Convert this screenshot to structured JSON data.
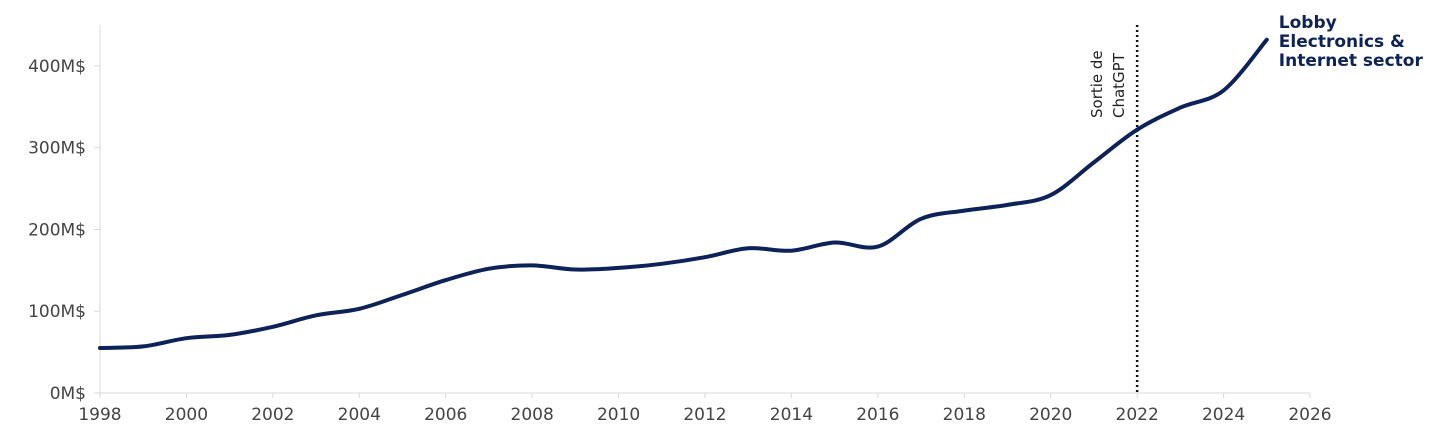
{
  "colors": {
    "series": "#0d2259",
    "axis": "#d9d9d9",
    "marker": "#111111",
    "text": "#444444"
  },
  "chart_data": {
    "type": "line",
    "title": "",
    "xlabel": "",
    "ylabel": "",
    "xlim": [
      1998,
      2026
    ],
    "ylim": [
      0,
      450
    ],
    "x_ticks": [
      1998,
      2000,
      2002,
      2004,
      2006,
      2008,
      2010,
      2012,
      2014,
      2016,
      2018,
      2020,
      2022,
      2024,
      2026
    ],
    "y_ticks": [
      {
        "value": 0,
        "label": "0M$"
      },
      {
        "value": 100,
        "label": "100M$"
      },
      {
        "value": 200,
        "label": "200M$"
      },
      {
        "value": 300,
        "label": "300M$"
      },
      {
        "value": 400,
        "label": "400M$"
      }
    ],
    "series": [
      {
        "name": "Lobby Electronics & Internet sector",
        "name_lines": [
          "Lobby",
          "Electronics &",
          "Internet sector"
        ],
        "x": [
          1998,
          1999,
          2000,
          2001,
          2002,
          2003,
          2004,
          2005,
          2006,
          2007,
          2008,
          2009,
          2010,
          2011,
          2012,
          2013,
          2014,
          2015,
          2016,
          2017,
          2018,
          2019,
          2020,
          2021,
          2022,
          2023,
          2024,
          2025
        ],
        "y": [
          55,
          57,
          67,
          71,
          81,
          95,
          103,
          120,
          138,
          152,
          156,
          151,
          153,
          158,
          166,
          177,
          174,
          184,
          179,
          213,
          223,
          230,
          242,
          282,
          322,
          349,
          370,
          432
        ]
      }
    ],
    "annotations": [
      {
        "type": "vline",
        "x": 2022,
        "text_lines": [
          "Sortie de",
          "ChatGPT"
        ]
      }
    ],
    "grid": false,
    "legend": "direct-label-end"
  }
}
